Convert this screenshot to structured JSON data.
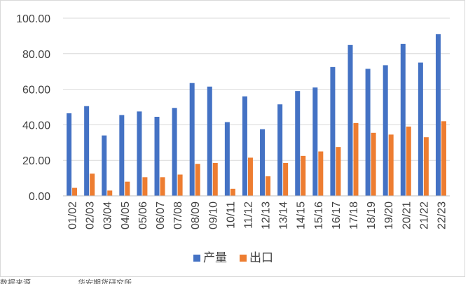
{
  "chart_data": {
    "type": "bar",
    "categories": [
      "01/02",
      "02/03",
      "03/04",
      "04/05",
      "05/06",
      "06/07",
      "07/08",
      "08/09",
      "09/10",
      "10/11",
      "11/12",
      "12/13",
      "13/14",
      "14/15",
      "15/16",
      "16/17",
      "17/18",
      "18/19",
      "19/20",
      "20/21",
      "21/22",
      "22/23"
    ],
    "series": [
      {
        "name": "产量",
        "color": "#4472c4",
        "values": [
          46.5,
          50.5,
          34.0,
          45.5,
          47.5,
          44.5,
          49.5,
          63.5,
          61.5,
          41.5,
          56.0,
          37.5,
          51.5,
          59.0,
          61.0,
          72.5,
          85.0,
          71.5,
          73.5,
          85.5,
          75.0,
          91.0
        ]
      },
      {
        "name": "出口",
        "color": "#ed7d31",
        "values": [
          4.5,
          12.5,
          3.0,
          8.0,
          10.5,
          10.5,
          12.0,
          18.0,
          18.5,
          4.0,
          21.5,
          11.0,
          18.5,
          22.5,
          25.0,
          27.5,
          41.0,
          35.5,
          34.5,
          39.0,
          33.0,
          42.0
        ]
      }
    ],
    "yticks": [
      "0.00",
      "20.00",
      "40.00",
      "60.00",
      "80.00",
      "100.00"
    ],
    "ylim": [
      0,
      100
    ],
    "grid": true,
    "legend": "bottom"
  },
  "footnote": {
    "source_label": "数据来源",
    "analysis_label": "华安期货研究所"
  }
}
